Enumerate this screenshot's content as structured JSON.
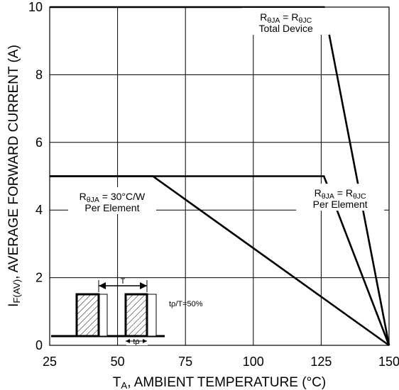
{
  "chart_data": {
    "type": "line",
    "xlabel": {
      "main": "T",
      "sub": "A",
      "rest": ", AMBIENT TEMPERATURE (°C)"
    },
    "ylabel": {
      "main": "I",
      "sub": "F(AV)",
      "rest": ", AVERAGE FORWARD CURRENT (A)"
    },
    "xlim": [
      25,
      150
    ],
    "ylim": [
      0,
      10
    ],
    "x_ticks": [
      25,
      50,
      75,
      100,
      125,
      150
    ],
    "y_ticks": [
      0,
      2,
      4,
      6,
      8,
      10
    ],
    "grid": true,
    "series": [
      {
        "points": [
          [
            25,
            10
          ],
          [
            126,
            10
          ],
          [
            150,
            0
          ]
        ]
      },
      {
        "points": [
          [
            25,
            5
          ],
          [
            126,
            5
          ],
          [
            150,
            0
          ]
        ]
      },
      {
        "points": [
          [
            25,
            5
          ],
          [
            63,
            5
          ],
          [
            150,
            0
          ]
        ]
      }
    ],
    "annotations": [
      {
        "id": "total-device",
        "x": 112,
        "y": 9.6,
        "lines": [
          {
            "parts": [
              {
                "t": "R"
              },
              {
                "t": "θJA",
                "sub": true
              },
              {
                "t": " = R"
              },
              {
                "t": "θJC",
                "sub": true
              }
            ]
          },
          {
            "parts": [
              {
                "t": "Total Device"
              }
            ]
          }
        ]
      },
      {
        "id": "rtheta-30",
        "x": 48,
        "y": 4.3,
        "lines": [
          {
            "parts": [
              {
                "t": "R"
              },
              {
                "t": "θJA",
                "sub": true
              },
              {
                "t": " = 30°C/W"
              }
            ]
          },
          {
            "parts": [
              {
                "t": "Per Element"
              }
            ]
          }
        ]
      },
      {
        "id": "per-element",
        "x": 132,
        "y": 4.4,
        "lines": [
          {
            "parts": [
              {
                "t": "R"
              },
              {
                "t": "θJA",
                "sub": true
              },
              {
                "t": " = R"
              },
              {
                "t": "θJC",
                "sub": true
              }
            ]
          },
          {
            "parts": [
              {
                "t": "Per Element"
              }
            ]
          }
        ]
      }
    ],
    "inset": {
      "period_label": "T",
      "pulse_label": "tρ",
      "duty_label": "tρ/T=50%"
    }
  }
}
